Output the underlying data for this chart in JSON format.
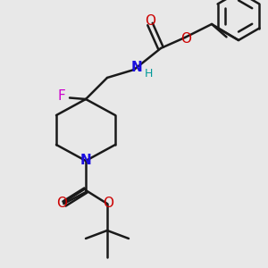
{
  "bg_color": "#e8e8e8",
  "bond_color": "#1a1a1a",
  "bond_width": 1.8,
  "atom_colors": {
    "N": "#1a0de0",
    "O": "#cc0000",
    "F": "#cc00cc",
    "NH": "#009999",
    "C": "#1a1a1a"
  },
  "font_size": 10,
  "font_size_small": 9
}
